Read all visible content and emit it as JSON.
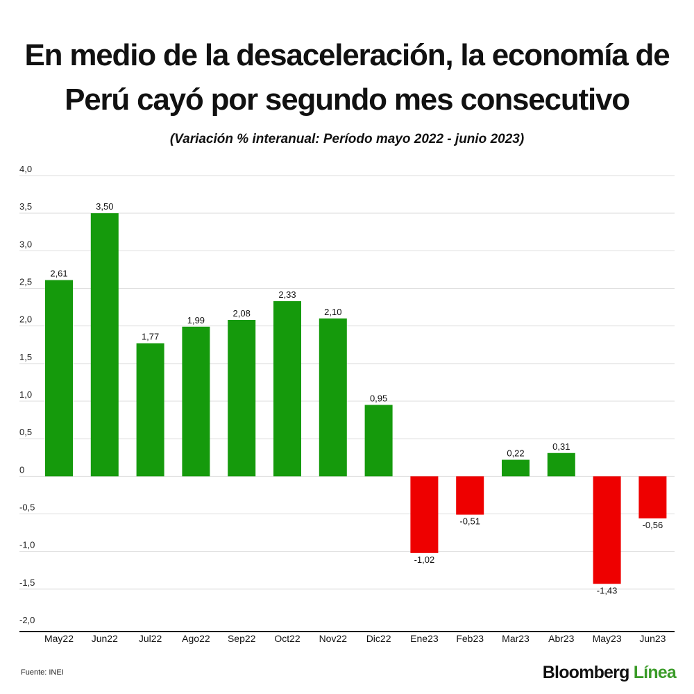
{
  "title_line1": "En medio de la desaceleración, la economía de",
  "title_line2": "Perú cayó por segundo mes consecutivo",
  "subtitle": "(Variación % interanual: Período mayo 2022 - junio 2023)",
  "source": "Fuente: INEI",
  "logo": {
    "part1": "Bloomberg",
    "part2": "Línea"
  },
  "colors": {
    "positive": "#159a0c",
    "negative": "#ee0000",
    "grid": "#dddddd",
    "axis": "#111111",
    "brand_green": "#3a9b28"
  },
  "chart_data": {
    "type": "bar",
    "categories": [
      "May22",
      "Jun22",
      "Jul22",
      "Ago22",
      "Sep22",
      "Oct22",
      "Nov22",
      "Dic22",
      "Ene23",
      "Feb23",
      "Mar23",
      "Abr23",
      "May23",
      "Jun23"
    ],
    "values": [
      2.61,
      3.5,
      1.77,
      1.99,
      2.08,
      2.33,
      2.1,
      0.95,
      -1.02,
      -0.51,
      0.22,
      0.31,
      -1.43,
      -0.56
    ],
    "value_labels": [
      "2,61",
      "3,50",
      "1,77",
      "1,99",
      "2,08",
      "2,33",
      "2,10",
      "0,95",
      "-1,02",
      "-0,51",
      "0,22",
      "0,31",
      "-1,43",
      "-0,56"
    ],
    "ylim": [
      -2.0,
      4.0
    ],
    "yticks": [
      4.0,
      3.5,
      3.0,
      2.5,
      2.0,
      1.5,
      1.0,
      0.5,
      0,
      -0.5,
      -1.0,
      -1.5,
      -2.0
    ],
    "ytick_labels": [
      "4,0",
      "3,5",
      "3,0",
      "2,5",
      "2,0",
      "1,5",
      "1,0",
      "0,5",
      "0",
      "-0,5",
      "-1,0",
      "-1,5",
      "-2,0"
    ],
    "grid": true,
    "xlabel": "",
    "ylabel": ""
  }
}
